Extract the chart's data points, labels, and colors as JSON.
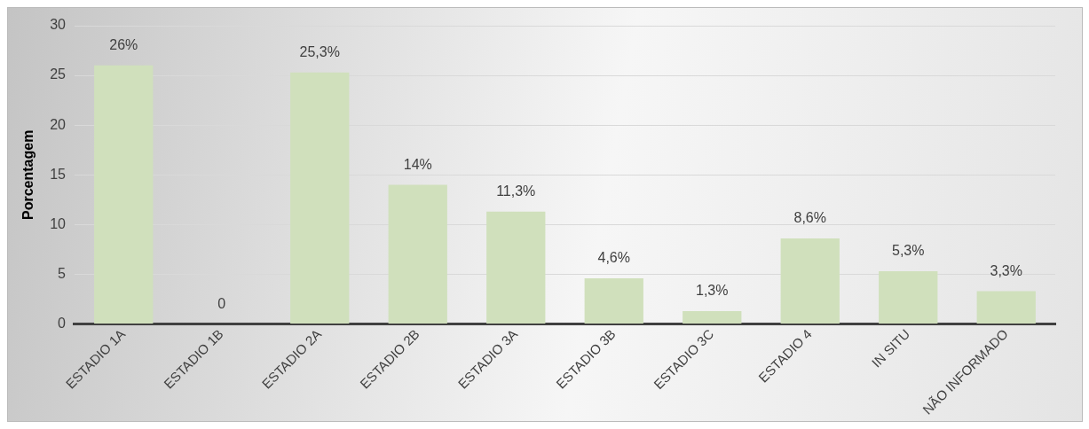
{
  "chart_data": {
    "type": "bar",
    "ylabel": "Porcentagem",
    "categories": [
      "ESTADIO 1A",
      "ESTADIO 1B",
      "ESTADIO 2A",
      "ESTADIO 2B",
      "ESTADIO 3A",
      "ESTADIO 3B",
      "ESTADIO 3C",
      "ESTADIO 4",
      "IN SITU",
      "NÃO INFORMADO"
    ],
    "values": [
      26,
      0,
      25.3,
      14,
      11.3,
      4.6,
      1.3,
      8.6,
      5.3,
      3.3
    ],
    "value_labels": [
      "26%",
      "0",
      "25,3%",
      "14%",
      "11,3%",
      "4,6%",
      "1,3%",
      "8,6%",
      "5,3%",
      "3,3%"
    ],
    "color": "#d0e0bc",
    "ylim": [
      0,
      30
    ],
    "yticks": [
      0,
      5,
      10,
      15,
      20,
      25,
      30
    ],
    "grid": "y",
    "legend": false
  }
}
